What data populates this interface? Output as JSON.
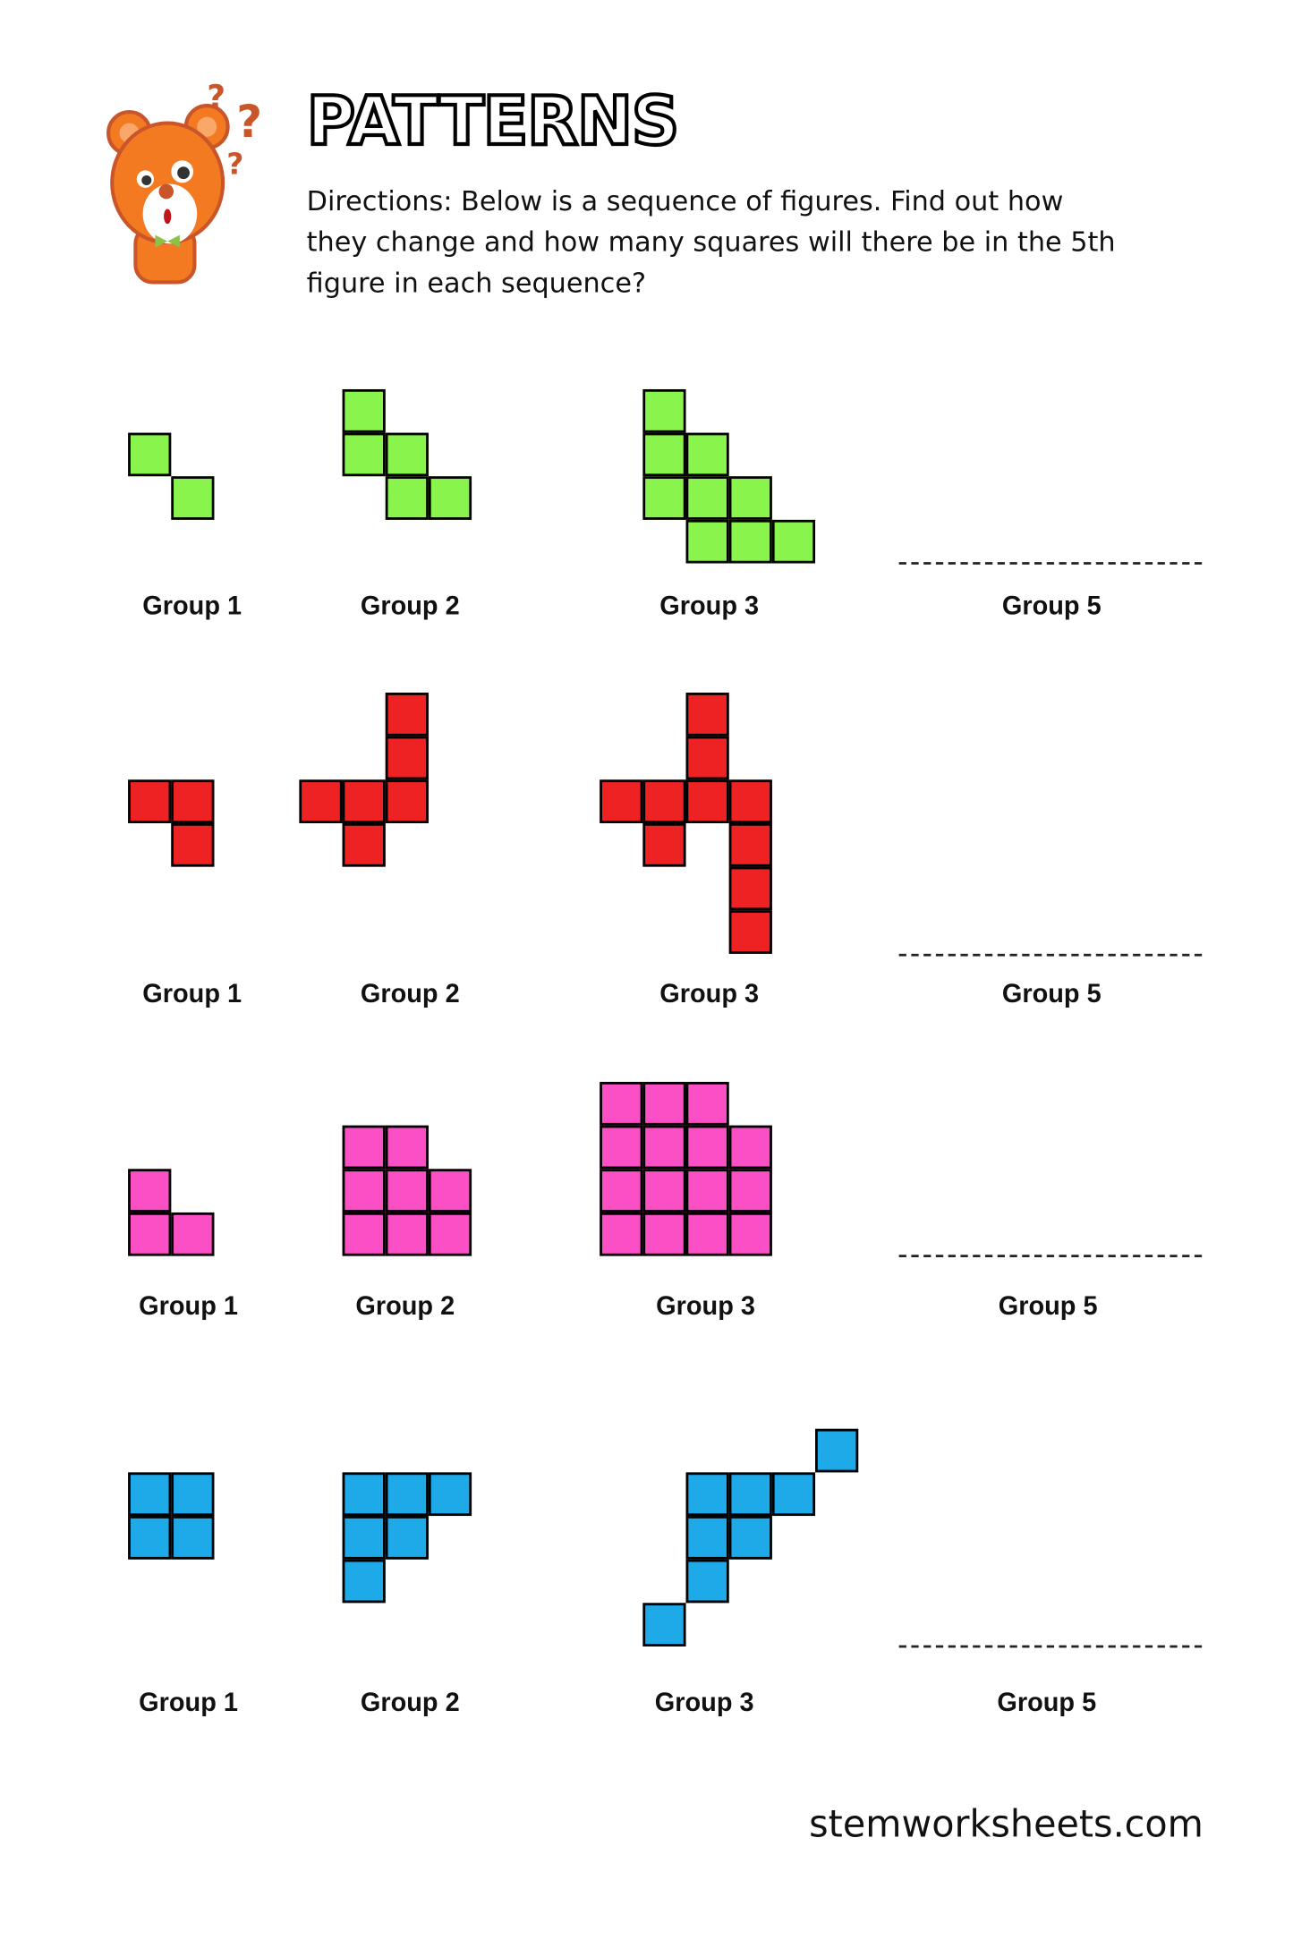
{
  "header": {
    "title": "PATTERNS",
    "directions": "Directions: Below is a sequence of figures. Find out how they change and how many squares will there be in the 5th figure in each sequence?",
    "mascot_icon": "confused-bear-icon"
  },
  "rows": [
    {
      "color": "#88f44c",
      "labels": [
        "Group 1",
        "Group 2",
        "Group 3",
        "Group 5"
      ],
      "figures": [
        [
          [
            0,
            0
          ],
          [
            1,
            1
          ]
        ],
        [
          [
            0,
            0
          ],
          [
            0,
            1
          ],
          [
            1,
            1
          ],
          [
            1,
            2
          ],
          [
            2,
            2
          ]
        ],
        [
          [
            0,
            0
          ],
          [
            0,
            1
          ],
          [
            1,
            1
          ],
          [
            0,
            2
          ],
          [
            1,
            2
          ],
          [
            2,
            2
          ],
          [
            1,
            3
          ],
          [
            2,
            3
          ],
          [
            3,
            3
          ]
        ]
      ]
    },
    {
      "color": "#ee2222",
      "labels": [
        "Group 1",
        "Group 2",
        "Group 3",
        "Group 5"
      ],
      "figures": [
        [
          [
            0,
            0
          ],
          [
            1,
            0
          ],
          [
            1,
            1
          ]
        ],
        [
          [
            2,
            0
          ],
          [
            2,
            1
          ],
          [
            0,
            2
          ],
          [
            1,
            2
          ],
          [
            2,
            2
          ],
          [
            1,
            3
          ]
        ],
        [
          [
            2,
            0
          ],
          [
            2,
            1
          ],
          [
            0,
            2
          ],
          [
            1,
            2
          ],
          [
            2,
            2
          ],
          [
            3,
            2
          ],
          [
            1,
            3
          ],
          [
            3,
            3
          ],
          [
            3,
            4
          ],
          [
            3,
            5
          ]
        ]
      ]
    },
    {
      "color": "#fb4fc6",
      "labels": [
        "Group 1",
        "Group 2",
        "Group 3",
        "Group 5"
      ],
      "figures": [
        [
          [
            0,
            0
          ],
          [
            0,
            1
          ],
          [
            1,
            1
          ]
        ],
        [
          [
            0,
            0
          ],
          [
            1,
            0
          ],
          [
            0,
            1
          ],
          [
            1,
            1
          ],
          [
            2,
            1
          ],
          [
            0,
            2
          ],
          [
            1,
            2
          ],
          [
            2,
            2
          ]
        ],
        [
          [
            0,
            0
          ],
          [
            1,
            0
          ],
          [
            2,
            0
          ],
          [
            0,
            1
          ],
          [
            1,
            1
          ],
          [
            2,
            1
          ],
          [
            3,
            1
          ],
          [
            0,
            2
          ],
          [
            1,
            2
          ],
          [
            2,
            2
          ],
          [
            3,
            2
          ],
          [
            0,
            3
          ],
          [
            1,
            3
          ],
          [
            2,
            3
          ],
          [
            3,
            3
          ]
        ]
      ]
    },
    {
      "color": "#1eaae8",
      "labels": [
        "Group 1",
        "Group 2",
        "Group 3",
        "Group 5"
      ],
      "figures": [
        [
          [
            0,
            0
          ],
          [
            1,
            0
          ],
          [
            0,
            1
          ],
          [
            1,
            1
          ]
        ],
        [
          [
            0,
            0
          ],
          [
            1,
            0
          ],
          [
            2,
            0
          ],
          [
            0,
            1
          ],
          [
            1,
            1
          ],
          [
            0,
            2
          ]
        ],
        [
          [
            4,
            0
          ],
          [
            1,
            1
          ],
          [
            2,
            1
          ],
          [
            3,
            1
          ],
          [
            1,
            2
          ],
          [
            2,
            2
          ],
          [
            1,
            3
          ],
          [
            0,
            4
          ]
        ]
      ]
    }
  ],
  "footer": {
    "site": "stemworksheets.com"
  }
}
